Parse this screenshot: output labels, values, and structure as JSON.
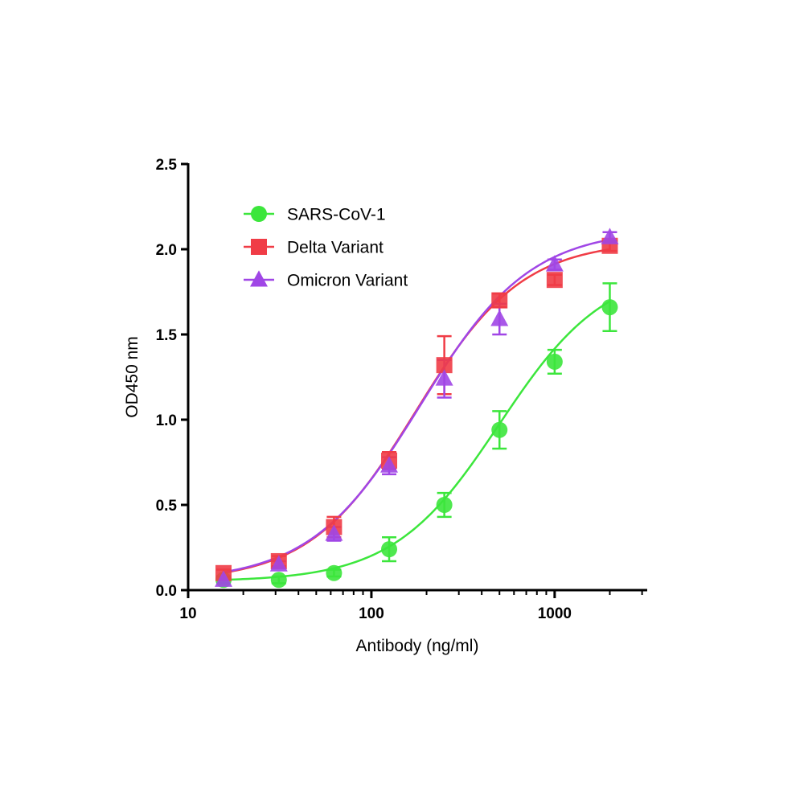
{
  "chart_data": {
    "type": "scatter",
    "title": "",
    "xlabel": "Antibody (ng/ml)",
    "ylabel": "OD450 nm",
    "xscale": "log",
    "xlim": [
      10,
      3200
    ],
    "ylim": [
      0,
      2.5
    ],
    "x_ticks": [
      {
        "value": 10,
        "label": "10"
      },
      {
        "value": 100,
        "label": "100"
      },
      {
        "value": 1000,
        "label": "1000"
      }
    ],
    "y_ticks": [
      {
        "value": 0,
        "label": "0.0"
      },
      {
        "value": 0.5,
        "label": "0.5"
      },
      {
        "value": 1.0,
        "label": "1.0"
      },
      {
        "value": 1.5,
        "label": "1.5"
      },
      {
        "value": 2.0,
        "label": "2.0"
      },
      {
        "value": 2.5,
        "label": "2.5"
      }
    ],
    "grid": false,
    "legend_position": "top-left",
    "fit": "sigmoidal curve fit per series",
    "series": [
      {
        "name": "SARS-CoV-1",
        "marker": "circle",
        "color": "#3CE63C",
        "x": [
          15.6,
          31.25,
          62.5,
          125,
          250,
          500,
          1000,
          2000
        ],
        "y": [
          0.06,
          0.06,
          0.1,
          0.24,
          0.5,
          0.94,
          1.34,
          1.66
        ],
        "err": [
          0.02,
          0.02,
          0.02,
          0.07,
          0.07,
          0.11,
          0.07,
          0.14
        ],
        "fit_params": {
          "bottom": 0.05,
          "top": 1.9,
          "ec50": 500,
          "hill": 1.5
        }
      },
      {
        "name": "Delta Variant",
        "marker": "square",
        "color": "#F03C46",
        "x": [
          15.6,
          31.25,
          62.5,
          125,
          250,
          500,
          1000,
          2000
        ],
        "y": [
          0.1,
          0.17,
          0.37,
          0.76,
          1.32,
          1.7,
          1.82,
          2.02
        ],
        "err": [
          0.02,
          0.03,
          0.06,
          0.05,
          0.17,
          0.04,
          0.03,
          0.03
        ],
        "fit_params": {
          "bottom": 0.05,
          "top": 2.05,
          "ec50": 175,
          "hill": 1.5
        }
      },
      {
        "name": "Omicron Variant",
        "marker": "triangle",
        "color": "#A046E6",
        "x": [
          15.6,
          31.25,
          62.5,
          125,
          250,
          500,
          1000,
          2000
        ],
        "y": [
          0.06,
          0.15,
          0.33,
          0.73,
          1.24,
          1.59,
          1.91,
          2.07
        ],
        "err": [
          0.02,
          0.02,
          0.04,
          0.05,
          0.11,
          0.09,
          0.03,
          0.03
        ],
        "fit_params": {
          "bottom": 0.05,
          "top": 2.12,
          "ec50": 185,
          "hill": 1.45
        }
      }
    ]
  }
}
